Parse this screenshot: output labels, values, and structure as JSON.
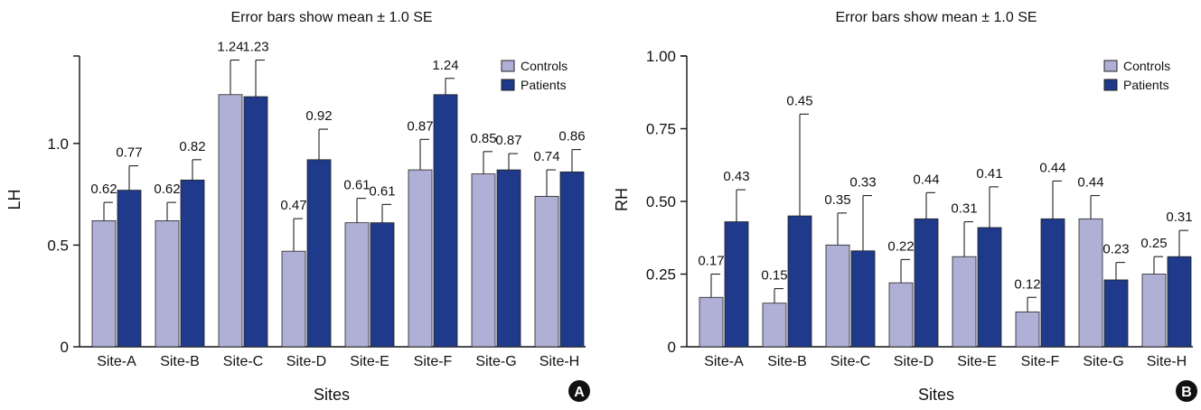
{
  "colors": {
    "controls": "#b0b0d6",
    "patients": "#1f3a8a",
    "axis": "#111111",
    "badge": "#111111"
  },
  "chart_data": [
    {
      "type": "bar",
      "panel_label": "A",
      "title": "Error bars show mean ± 1.0 SE",
      "xlabel": "Sites",
      "ylabel": "LH",
      "categories": [
        "Site-A",
        "Site-B",
        "Site-C",
        "Site-D",
        "Site-E",
        "Site-F",
        "Site-G",
        "Site-H"
      ],
      "ylim": [
        0,
        1.43
      ],
      "yticks": [
        0,
        0.5,
        1.0
      ],
      "ytick_labels": [
        "0",
        "0.5",
        "1.0"
      ],
      "legend_position": "top-right",
      "series": [
        {
          "name": "Controls",
          "values": [
            0.62,
            0.62,
            1.24,
            0.47,
            0.61,
            0.87,
            0.85,
            0.74
          ],
          "labels": [
            "0.62",
            "0.62",
            "1.24",
            "0.47",
            "0.61",
            "0.87",
            "0.85",
            "0.74"
          ],
          "error_upper": [
            0.71,
            0.71,
            1.41,
            0.63,
            0.73,
            1.02,
            0.96,
            0.87
          ]
        },
        {
          "name": "Patients",
          "values": [
            0.77,
            0.82,
            1.23,
            0.92,
            0.61,
            1.24,
            0.87,
            0.86
          ],
          "labels": [
            "0.77",
            "0.82",
            "1.23",
            "0.92",
            "0.61",
            "1.24",
            "0.87",
            "0.86"
          ],
          "error_upper": [
            0.89,
            0.92,
            1.41,
            1.07,
            0.7,
            1.32,
            0.95,
            0.97
          ]
        }
      ]
    },
    {
      "type": "bar",
      "panel_label": "B",
      "title": "Error bars show mean ± 1.0 SE",
      "xlabel": "Sites",
      "ylabel": "RH",
      "categories": [
        "Site-A",
        "Site-B",
        "Site-C",
        "Site-D",
        "Site-E",
        "Site-F",
        "Site-G",
        "Site-H"
      ],
      "ylim": [
        0,
        1.0
      ],
      "yticks": [
        0,
        0.25,
        0.5,
        0.75,
        1.0
      ],
      "ytick_labels": [
        "0",
        "0.25",
        "0.50",
        "0.75",
        "1.00"
      ],
      "legend_position": "top-right",
      "series": [
        {
          "name": "Controls",
          "values": [
            0.17,
            0.15,
            0.35,
            0.22,
            0.31,
            0.12,
            0.44,
            0.25
          ],
          "labels": [
            "0.17",
            "0.15",
            "0.35",
            "0.22",
            "0.31",
            "0.12",
            "0.44",
            "0.25"
          ],
          "error_upper": [
            0.25,
            0.2,
            0.46,
            0.3,
            0.43,
            0.17,
            0.52,
            0.31
          ]
        },
        {
          "name": "Patients",
          "values": [
            0.43,
            0.45,
            0.33,
            0.44,
            0.41,
            0.44,
            0.23,
            0.31
          ],
          "labels": [
            "0.43",
            "0.45",
            "0.33",
            "0.44",
            "0.41",
            "0.44",
            "0.23",
            "0.31"
          ],
          "error_upper": [
            0.54,
            0.8,
            0.52,
            0.53,
            0.55,
            0.57,
            0.29,
            0.4
          ]
        }
      ]
    }
  ]
}
